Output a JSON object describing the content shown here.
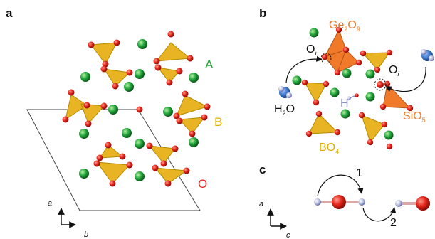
{
  "panels": {
    "a": {
      "letter": "a",
      "labels": {
        "A": "A",
        "B": "B",
        "O": "O"
      },
      "axes": {
        "a": "a",
        "b": "b"
      }
    },
    "b": {
      "letter": "b",
      "ge2o9": {
        "base": "Ge",
        "sub1": "2",
        "mid": "O",
        "sub2": "9"
      },
      "oi_left": {
        "base": "O",
        "sub": "i"
      },
      "oi_right": {
        "base": "O",
        "sub": "i"
      },
      "h2o": {
        "base": "H",
        "sub": "2",
        "tail": "O"
      },
      "h_label": "H",
      "bo4": {
        "base": "BO",
        "sub": "4"
      },
      "sio5": {
        "base": "SiO",
        "sub": "5"
      }
    },
    "c": {
      "letter": "c",
      "steps": [
        "1",
        "2"
      ],
      "axes": {
        "a": "a",
        "c": "c"
      }
    }
  },
  "colors": {
    "A_site": "#22a63c",
    "B_label": "#e6b000",
    "O_label": "#e2231a",
    "tetra_fill": "#e8b423",
    "tetra_edge": "#b38a00",
    "ge2o9_fill": "#f07a2a",
    "orange_label": "#f07a2a",
    "oxygen": "#e2231a",
    "hydrogen_label": "#8a8fc8",
    "water_blue": "#3b73c6",
    "bond": "#d9a7a7"
  }
}
